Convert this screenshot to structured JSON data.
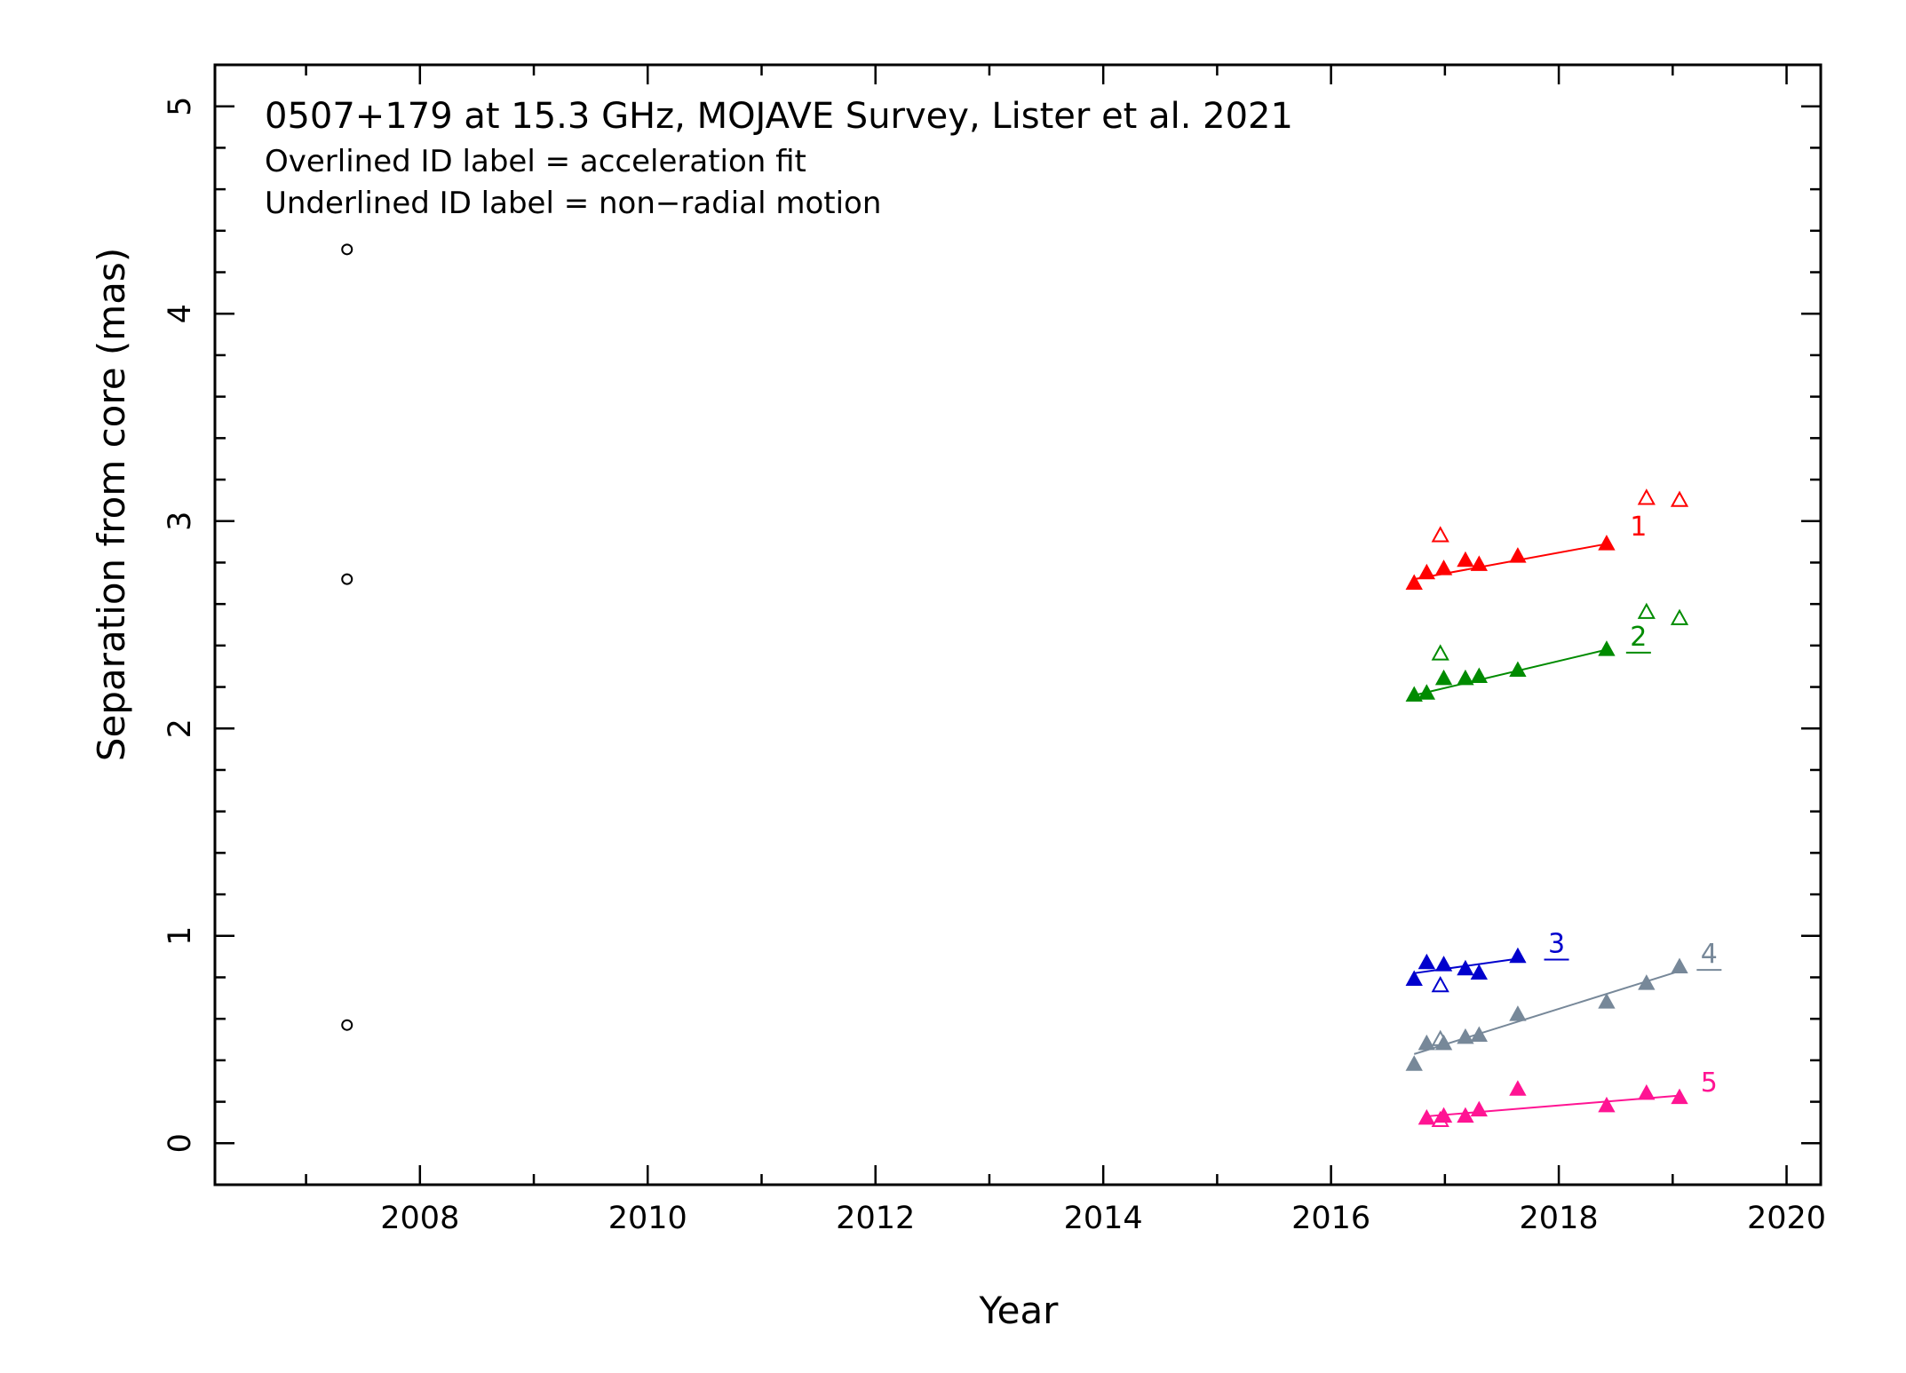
{
  "chart_data": {
    "type": "scatter",
    "title": "0507+179 at 15.3 GHz, MOJAVE Survey, Lister et al. 2021",
    "notes": [
      "Overlined ID label = acceleration fit",
      "Underlined ID label = non−radial motion"
    ],
    "xlabel": "Year",
    "ylabel": "Separation from core (mas)",
    "xlim": [
      2006.2,
      2020.3
    ],
    "ylim": [
      -0.2,
      5.2
    ],
    "x_ticks": [
      2008,
      2010,
      2012,
      2014,
      2016,
      2018,
      2020
    ],
    "y_ticks": [
      0,
      1,
      2,
      3,
      4,
      5
    ],
    "grid": false,
    "unassigned": {
      "color": "#000000",
      "marker": "open-circle",
      "points": [
        [
          2007.36,
          4.31
        ],
        [
          2007.36,
          2.72
        ],
        [
          2007.36,
          0.57
        ]
      ]
    },
    "series": [
      {
        "name": "1",
        "color": "#ff0000",
        "label_style": "plain",
        "label_pos": [
          2018.7,
          2.93
        ],
        "points": [
          [
            2016.73,
            2.7
          ],
          [
            2016.84,
            2.75
          ],
          [
            2016.99,
            2.77
          ],
          [
            2017.18,
            2.81
          ],
          [
            2017.3,
            2.79
          ],
          [
            2017.64,
            2.83
          ],
          [
            2018.42,
            2.89
          ]
        ],
        "open_points": [
          [
            2016.96,
            2.93
          ],
          [
            2018.77,
            3.11
          ],
          [
            2019.06,
            3.1
          ]
        ],
        "fit": [
          [
            2016.73,
            2.72
          ],
          [
            2018.42,
            2.89
          ]
        ]
      },
      {
        "name": "2",
        "color": "#008b00",
        "label_style": "underline",
        "label_pos": [
          2018.7,
          2.4
        ],
        "points": [
          [
            2016.73,
            2.16
          ],
          [
            2016.84,
            2.17
          ],
          [
            2016.99,
            2.24
          ],
          [
            2017.18,
            2.24
          ],
          [
            2017.3,
            2.25
          ],
          [
            2017.64,
            2.28
          ],
          [
            2018.42,
            2.38
          ]
        ],
        "open_points": [
          [
            2016.96,
            2.36
          ],
          [
            2018.77,
            2.56
          ],
          [
            2019.06,
            2.53
          ]
        ],
        "fit": [
          [
            2016.73,
            2.16
          ],
          [
            2018.42,
            2.38
          ]
        ]
      },
      {
        "name": "3",
        "color": "#0000cd",
        "label_style": "underline",
        "label_pos": [
          2017.98,
          0.92
        ],
        "points": [
          [
            2016.73,
            0.79
          ],
          [
            2016.84,
            0.87
          ],
          [
            2016.99,
            0.86
          ],
          [
            2017.18,
            0.84
          ],
          [
            2017.3,
            0.82
          ],
          [
            2017.64,
            0.9
          ]
        ],
        "open_points": [
          [
            2016.96,
            0.76
          ]
        ],
        "fit": [
          [
            2016.73,
            0.82
          ],
          [
            2017.64,
            0.89
          ]
        ]
      },
      {
        "name": "4",
        "color": "#778899",
        "label_style": "underline",
        "label_pos": [
          2019.32,
          0.87
        ],
        "points": [
          [
            2016.73,
            0.38
          ],
          [
            2016.84,
            0.48
          ],
          [
            2016.99,
            0.48
          ],
          [
            2017.18,
            0.51
          ],
          [
            2017.3,
            0.52
          ],
          [
            2017.64,
            0.62
          ],
          [
            2018.42,
            0.68
          ],
          [
            2018.77,
            0.77
          ],
          [
            2019.06,
            0.85
          ]
        ],
        "open_points": [
          [
            2016.96,
            0.5
          ]
        ],
        "fit": [
          [
            2016.73,
            0.43
          ],
          [
            2019.06,
            0.83
          ]
        ]
      },
      {
        "name": "5",
        "color": "#ff1493",
        "label_style": "plain",
        "label_pos": [
          2019.32,
          0.25
        ],
        "points": [
          [
            2016.84,
            0.12
          ],
          [
            2016.99,
            0.13
          ],
          [
            2017.18,
            0.13
          ],
          [
            2017.3,
            0.16
          ],
          [
            2017.64,
            0.26
          ],
          [
            2018.42,
            0.18
          ],
          [
            2018.77,
            0.24
          ],
          [
            2019.06,
            0.22
          ]
        ],
        "open_points": [
          [
            2016.96,
            0.11
          ]
        ],
        "fit": [
          [
            2016.84,
            0.13
          ],
          [
            2019.06,
            0.23
          ]
        ]
      }
    ]
  }
}
